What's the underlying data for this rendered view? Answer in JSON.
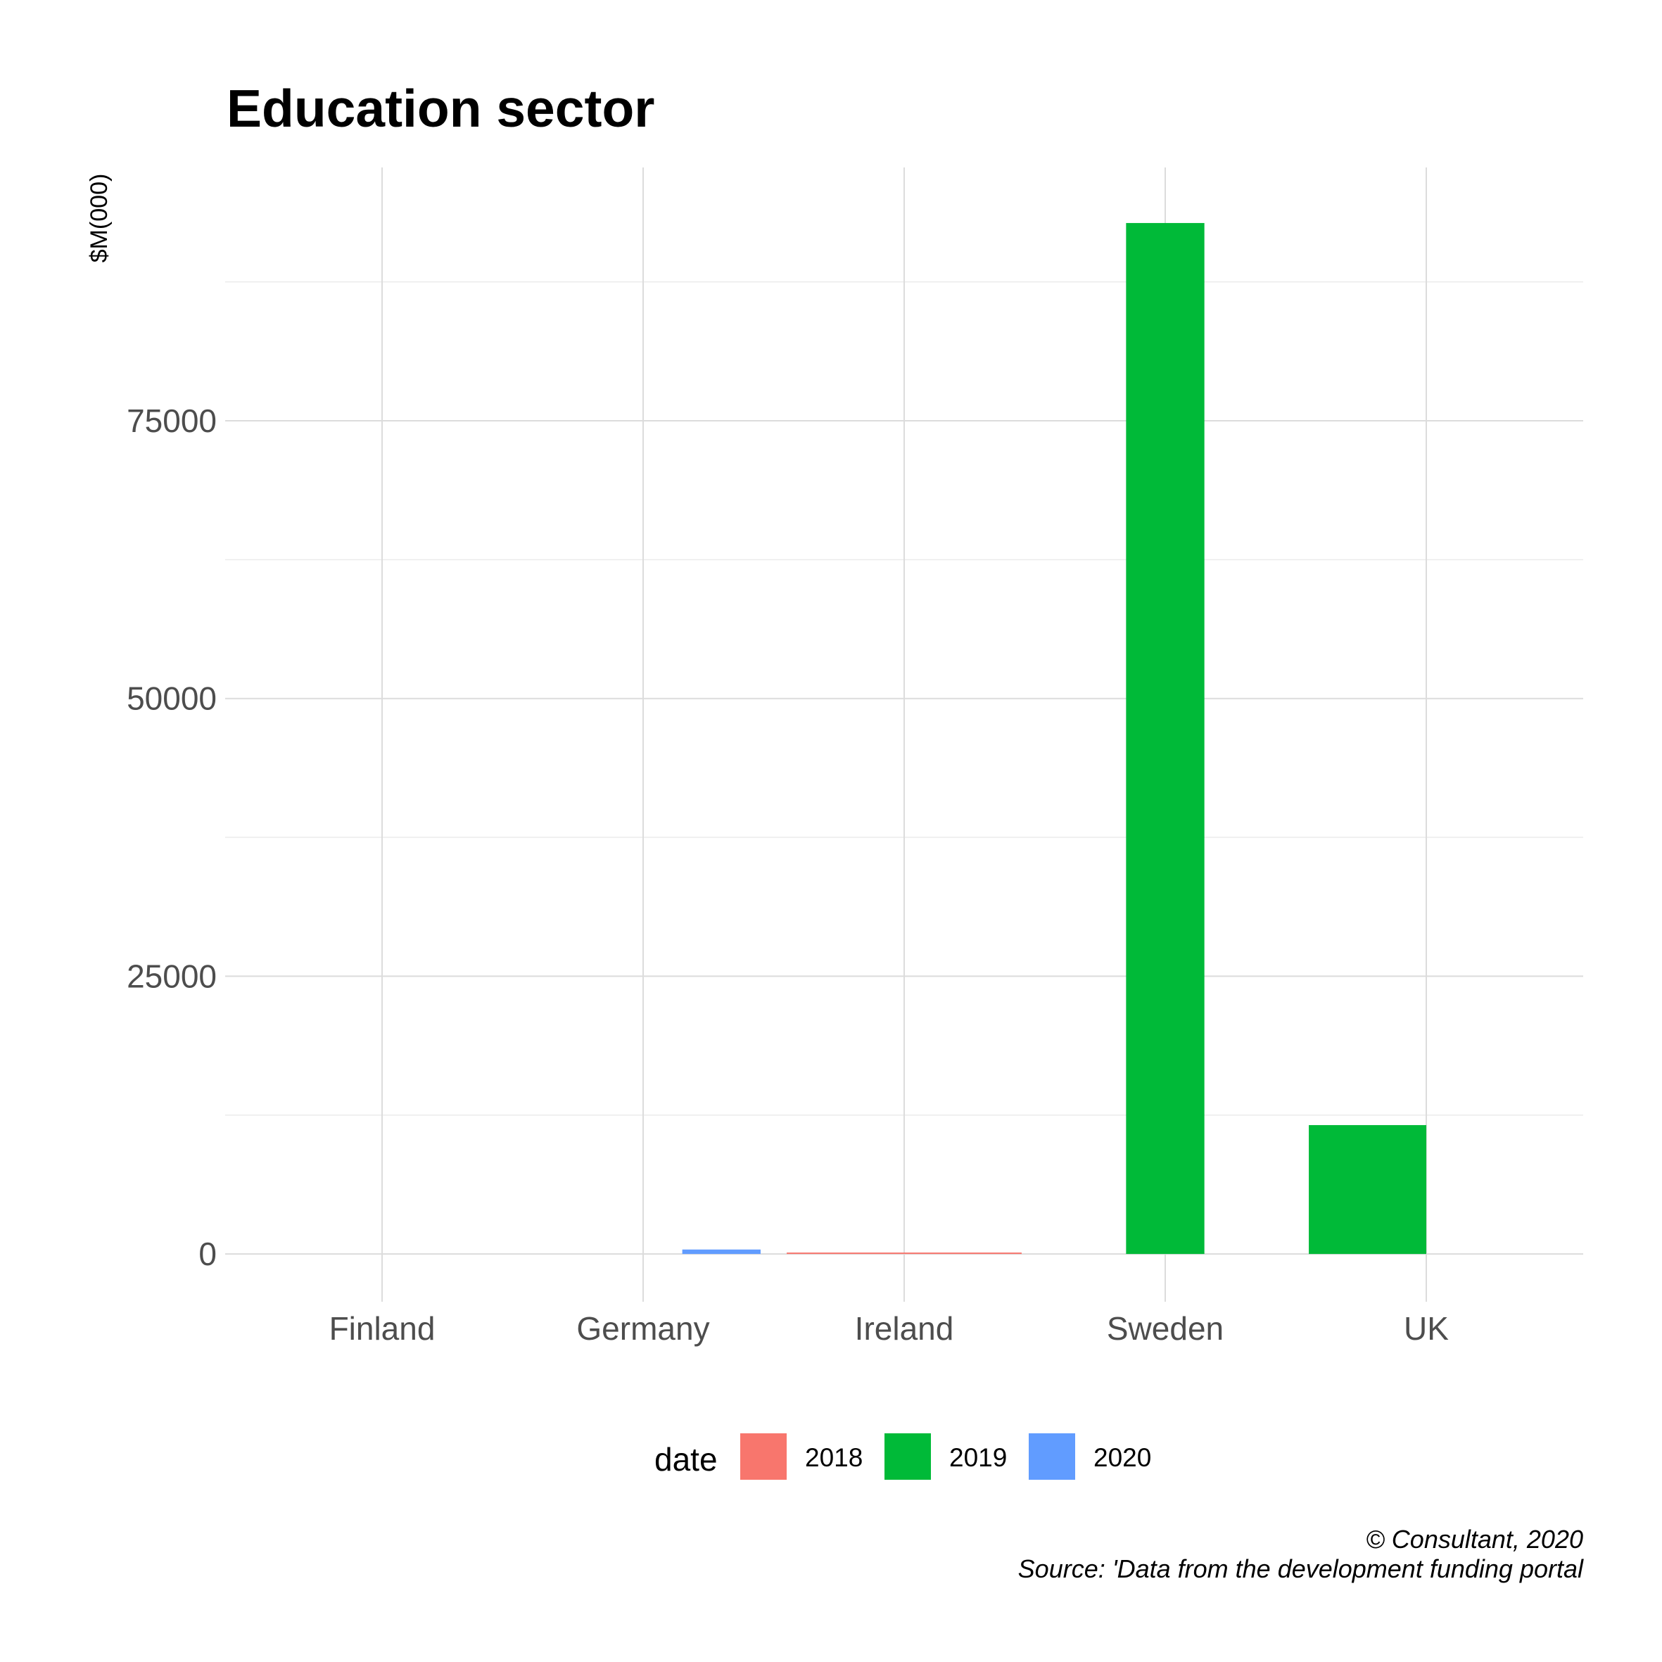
{
  "chart_data": {
    "type": "bar",
    "title": "Education sector",
    "xlabel": "",
    "ylabel": "$M(000)",
    "categories": [
      "Finland",
      "Germany",
      "Ireland",
      "Sweden",
      "UK"
    ],
    "yticks": [
      0,
      25000,
      50000,
      75000
    ],
    "ytick_labels": [
      "0",
      "25000",
      "50000",
      "75000"
    ],
    "ylim": [
      -4300,
      97800
    ],
    "grid": true,
    "legend": {
      "title": "date",
      "position": "bottom",
      "entries": [
        {
          "label": "2018",
          "color": "#F8766D"
        },
        {
          "label": "2019",
          "color": "#00BA38"
        },
        {
          "label": "2020",
          "color": "#619CFF"
        }
      ]
    },
    "bars": [
      {
        "category": "Germany",
        "series": "2020",
        "value": 400,
        "color": "#619CFF",
        "offset": 0.3,
        "width": 0.3
      },
      {
        "category": "Ireland",
        "series": "2018",
        "value": 100,
        "color": "#F8766D",
        "offset": 0,
        "width": 0.9
      },
      {
        "category": "Sweden",
        "series": "2019",
        "value": 92800,
        "color": "#00BA38",
        "offset": 0,
        "width": 0.3
      },
      {
        "category": "UK",
        "series": "2019",
        "value": 11600,
        "color": "#00BA38",
        "offset": -0.225,
        "width": 0.45
      }
    ]
  },
  "caption": {
    "line1": "© Consultant, 2020",
    "line2": "Source: 'Data from the development funding portal"
  }
}
